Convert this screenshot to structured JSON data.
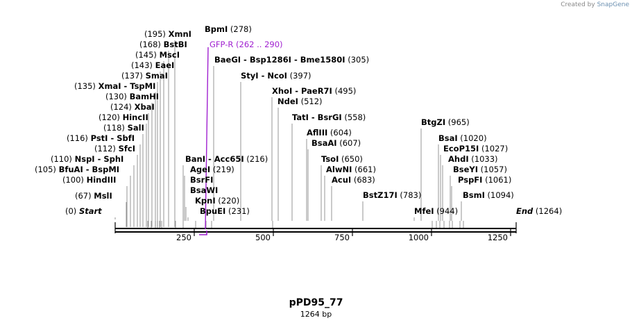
{
  "credit": {
    "prefix": "Created by",
    "brand": "SnapGene"
  },
  "plasmid": {
    "name": "pPD95_77",
    "length_label": "1264 bp"
  },
  "colors": {
    "line": "#000000",
    "feature": "#a020d0",
    "leader": "#7a7a7a"
  },
  "ruler": {
    "ticks": [
      "250",
      "500",
      "750",
      "1000",
      "1250"
    ]
  },
  "labels": [
    {
      "parts": [
        "BpmI"
      ],
      "pos": "(278)"
    },
    {
      "parts": [
        "XmnI"
      ],
      "pos": "(195)",
      "pos_first": true
    },
    {
      "parts": [
        "BstBI"
      ],
      "pos": "(168)",
      "pos_first": true
    },
    {
      "parts": [
        "MscI"
      ],
      "pos": "(145)",
      "pos_first": true
    },
    {
      "parts": [
        "EaeI"
      ],
      "pos": "(143)",
      "pos_first": true
    },
    {
      "parts": [
        "SmaI"
      ],
      "pos": "(137)",
      "pos_first": true
    },
    {
      "parts": [
        "XmaI",
        "TspMI"
      ],
      "pos": "(135)",
      "pos_first": true
    },
    {
      "parts": [
        "BamHI"
      ],
      "pos": "(130)",
      "pos_first": true
    },
    {
      "parts": [
        "XbaI"
      ],
      "pos": "(124)",
      "pos_first": true
    },
    {
      "parts": [
        "HincII"
      ],
      "pos": "(120)",
      "pos_first": true
    },
    {
      "parts": [
        "SalI"
      ],
      "pos": "(118)",
      "pos_first": true
    },
    {
      "parts": [
        "PstI",
        "SbfI"
      ],
      "pos": "(116)",
      "pos_first": true
    },
    {
      "parts": [
        "SfcI"
      ],
      "pos": "(112)",
      "pos_first": true
    },
    {
      "parts": [
        "NspI",
        "SphI"
      ],
      "pos": "(110)",
      "pos_first": true
    },
    {
      "parts": [
        "BfuAI",
        "BspMI"
      ],
      "pos": "(105)",
      "pos_first": true
    },
    {
      "parts": [
        "HindIII"
      ],
      "pos": "(100)",
      "pos_first": true
    },
    {
      "parts": [
        "MslI"
      ],
      "pos": "(67)",
      "pos_first": true
    },
    {
      "parts": [
        "Start"
      ],
      "pos": "(0)",
      "pos_first": true,
      "italic": true
    },
    {
      "parts": [
        "GFP-R"
      ],
      "pos": "(262 .. 290)",
      "feature": true
    },
    {
      "parts": [
        "BaeGI",
        "Bsp1286I",
        "Bme1580I"
      ],
      "pos": "(305)"
    },
    {
      "parts": [
        "StyI",
        "NcoI"
      ],
      "pos": "(397)"
    },
    {
      "parts": [
        "XhoI",
        "PaeR7I"
      ],
      "pos": "(495)"
    },
    {
      "parts": [
        "NdeI"
      ],
      "pos": "(512)"
    },
    {
      "parts": [
        "TatI",
        "BsrGI"
      ],
      "pos": "(558)"
    },
    {
      "parts": [
        "AflIII"
      ],
      "pos": "(604)"
    },
    {
      "parts": [
        "BsaAI"
      ],
      "pos": "(607)"
    },
    {
      "parts": [
        "TsoI"
      ],
      "pos": "(650)"
    },
    {
      "parts": [
        "AlwNI"
      ],
      "pos": "(661)"
    },
    {
      "parts": [
        "AcuI"
      ],
      "pos": "(683)"
    },
    {
      "parts": [
        "BanI",
        "Acc65I"
      ],
      "pos": "(216)"
    },
    {
      "parts": [
        "AgeI"
      ],
      "pos": "(219)"
    },
    {
      "parts": [
        "BsrFI"
      ],
      "pos": ""
    },
    {
      "parts": [
        "BsaWI"
      ],
      "pos": ""
    },
    {
      "parts": [
        "KpnI"
      ],
      "pos": "(220)"
    },
    {
      "parts": [
        "BpuEI"
      ],
      "pos": "(231)"
    },
    {
      "parts": [
        "BstZ17I"
      ],
      "pos": "(783)"
    },
    {
      "parts": [
        "MfeI"
      ],
      "pos": "(944)"
    },
    {
      "parts": [
        "BtgZI"
      ],
      "pos": "(965)"
    },
    {
      "parts": [
        "BsaI"
      ],
      "pos": "(1020)"
    },
    {
      "parts": [
        "EcoP15I"
      ],
      "pos": "(1027)"
    },
    {
      "parts": [
        "AhdI"
      ],
      "pos": "(1033)"
    },
    {
      "parts": [
        "BseYI"
      ],
      "pos": "(1057)"
    },
    {
      "parts": [
        "PspFI"
      ],
      "pos": "(1061)"
    },
    {
      "parts": [
        "BsmI"
      ],
      "pos": "(1094)"
    },
    {
      "parts": [
        "End"
      ],
      "pos": "(1264)",
      "italic": true
    }
  ]
}
